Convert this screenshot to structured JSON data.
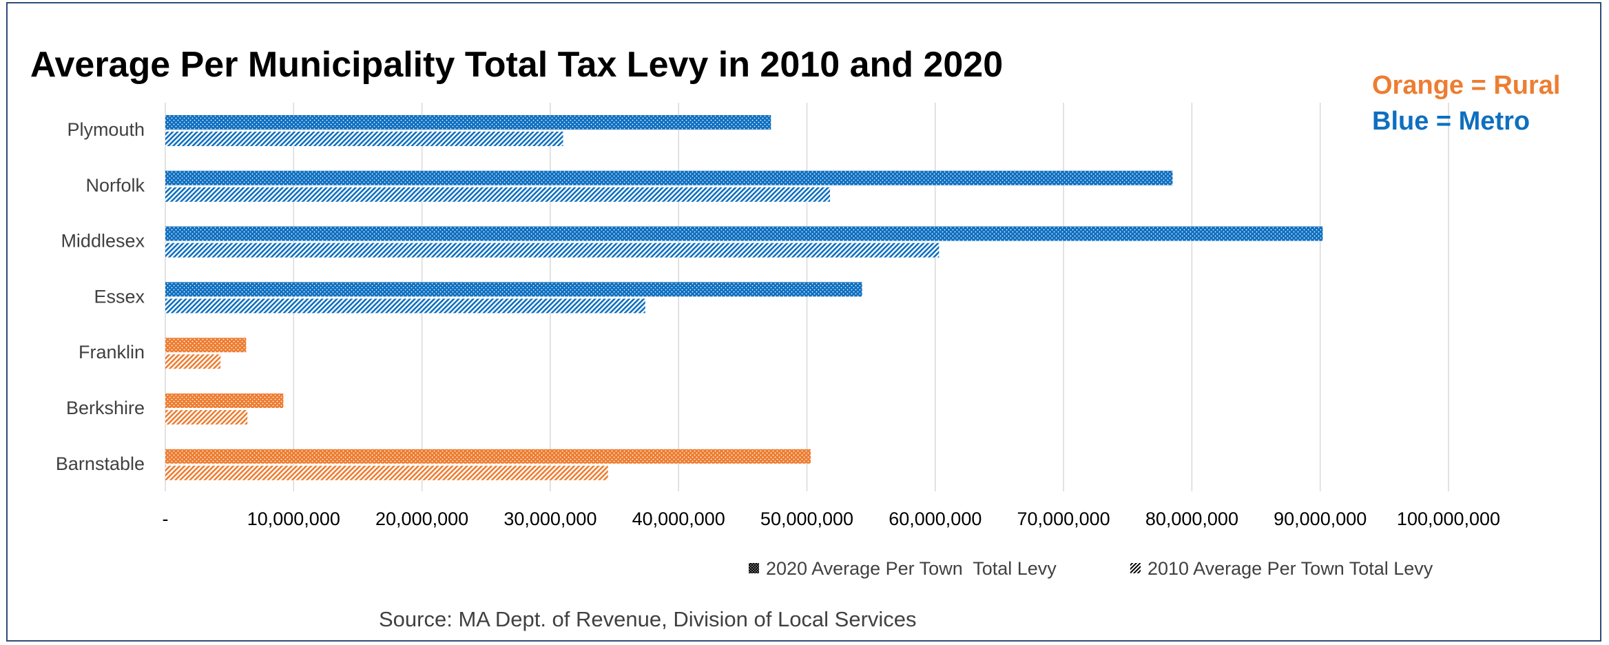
{
  "chart_data": {
    "type": "bar",
    "orientation": "horizontal",
    "title": "Average Per Municipality Total Tax Levy in 2010 and 2020",
    "categories": [
      "Plymouth",
      "Norfolk",
      "Middlesex",
      "Essex",
      "Franklin",
      "Berkshire",
      "Barnstable"
    ],
    "category_group": [
      "Metro",
      "Metro",
      "Metro",
      "Metro",
      "Rural",
      "Rural",
      "Rural"
    ],
    "series": [
      {
        "name": "2020 Average Per Town  Total Levy",
        "pattern": "dotted",
        "values": [
          47200000,
          78500000,
          90200000,
          54300000,
          6300000,
          9200000,
          50300000
        ]
      },
      {
        "name": "2010 Average Per Town Total Levy",
        "pattern": "diagonal-hatch",
        "values": [
          31000000,
          51800000,
          60300000,
          37400000,
          4300000,
          6400000,
          34500000
        ]
      }
    ],
    "xlim": [
      0,
      100000000
    ],
    "x_ticks": [
      0,
      10000000,
      20000000,
      30000000,
      40000000,
      50000000,
      60000000,
      70000000,
      80000000,
      90000000,
      100000000
    ],
    "x_tick_labels": [
      "-",
      "10,000,000",
      "20,000,000",
      "30,000,000",
      "40,000,000",
      "50,000,000",
      "60,000,000",
      "70,000,000",
      "80,000,000",
      "90,000,000",
      "100,000,000"
    ],
    "grid": "vertical",
    "legend_position": "bottom-right",
    "colors": {
      "Metro": "#0e6fc0",
      "Rural": "#ed7d31"
    }
  },
  "annotation": {
    "rural_note": "Orange = Rural",
    "metro_note": "Blue = Metro"
  },
  "source": "Source: MA Dept. of Revenue, Division of Local Services"
}
